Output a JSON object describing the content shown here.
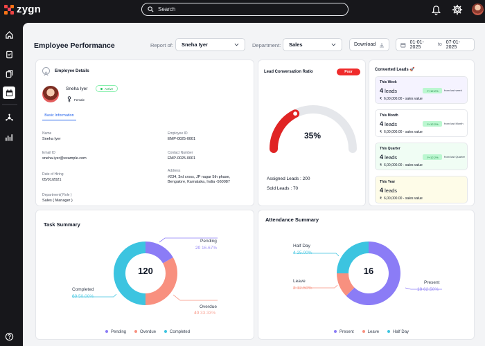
{
  "app": {
    "name": "zygn"
  },
  "search": {
    "placeholder": "Search"
  },
  "colors": {
    "pending": "#8b7cf6",
    "overdue": "#f8907f",
    "completed": "#3cc4e0",
    "present": "#8b7cf6",
    "leave": "#f8907f",
    "half_day": "#3cc4e0",
    "gauge_fill": "#e02424",
    "gauge_track": "#e5e7eb"
  },
  "header": {
    "title": "Employee Performance",
    "report_of_label": "Report of:",
    "report_of_value": "Sneha Iyer",
    "department_label": "Department:",
    "department_value": "Sales",
    "download_label": "Download",
    "date_from": "01-01-2025",
    "date_to_word": "to",
    "date_to": "07-01-2025"
  },
  "employee": {
    "section_title": "Employee Details",
    "name": "Sneha Iyer",
    "status": "Active",
    "gender": "Female",
    "tab": "Basic Information",
    "fields": [
      {
        "label": "Name",
        "value": "Sneha Iyer"
      },
      {
        "label": "Employee ID",
        "value": "EMP-0025-0001"
      },
      {
        "label": "Email ID",
        "value": "sneha.iyer@example.com"
      },
      {
        "label": "Contact Number",
        "value": "EMP-0025-0001"
      },
      {
        "label": "Date of Hiring",
        "value": "05/01/2021"
      },
      {
        "label": "Address",
        "value": "#234, 3rd cross, JP nagar 5th phase, Bengalore, Karnataka, India -560087"
      },
      {
        "label": "Department( Role )",
        "value": "Sales ( Manager )"
      }
    ]
  },
  "lead_ratio": {
    "title": "Lead Conversation Ratio",
    "badge": "Poor",
    "percent": 35,
    "percent_label": "35%",
    "assigned": "Assigned Leads : 200",
    "sold": "Sold Leads : 70"
  },
  "converted": {
    "title": "Converted Leads",
    "title_icon": "rocket-icon",
    "cards": [
      {
        "period": "This Week",
        "count": "4",
        "unit": "leads",
        "sales": "6,00,000.00 - sales value",
        "change": "+12.2%",
        "from": "from last week",
        "bg": "#f5f3ff"
      },
      {
        "period": "This Month",
        "count": "4",
        "unit": "leads",
        "sales": "6,00,000.00 - sales value",
        "change": "+12.2%",
        "from": "from last Month",
        "bg": "#ffffff"
      },
      {
        "period": "This Quarter",
        "count": "4",
        "unit": "leads",
        "sales": "6,00,000.00 - sales value",
        "change": "+12.2%",
        "from": "from last Quarter",
        "bg": "#f0fdf4"
      },
      {
        "period": "This Year",
        "count": "4",
        "unit": "leads",
        "sales": "6,00,000.00 - sales value",
        "change": "",
        "from": "",
        "bg": "#fefce8"
      }
    ],
    "currency": "₹"
  },
  "task_summary": {
    "title": "Task Summary",
    "total": "120",
    "segments": [
      {
        "name": "Pending",
        "count": "20",
        "percent": "16.67%",
        "value": 20
      },
      {
        "name": "Overdue",
        "count": "40",
        "percent": "33.33%",
        "value": 40
      },
      {
        "name": "Completed",
        "count": "60",
        "percent": "50.00%",
        "value": 60
      }
    ],
    "legend": [
      "Pending",
      "Overdue",
      "Completed"
    ]
  },
  "attendance": {
    "title": "Attendance Summary",
    "total": "16",
    "segments": [
      {
        "name": "Present",
        "count": "10",
        "percent": "62.50%",
        "value": 10
      },
      {
        "name": "Leave",
        "count": "2",
        "percent": "12.50%",
        "value": 2
      },
      {
        "name": "Half Day",
        "count": "4",
        "percent": "25.00%",
        "value": 4
      }
    ],
    "legend": [
      "Present",
      "Leave",
      "Half Day"
    ]
  }
}
